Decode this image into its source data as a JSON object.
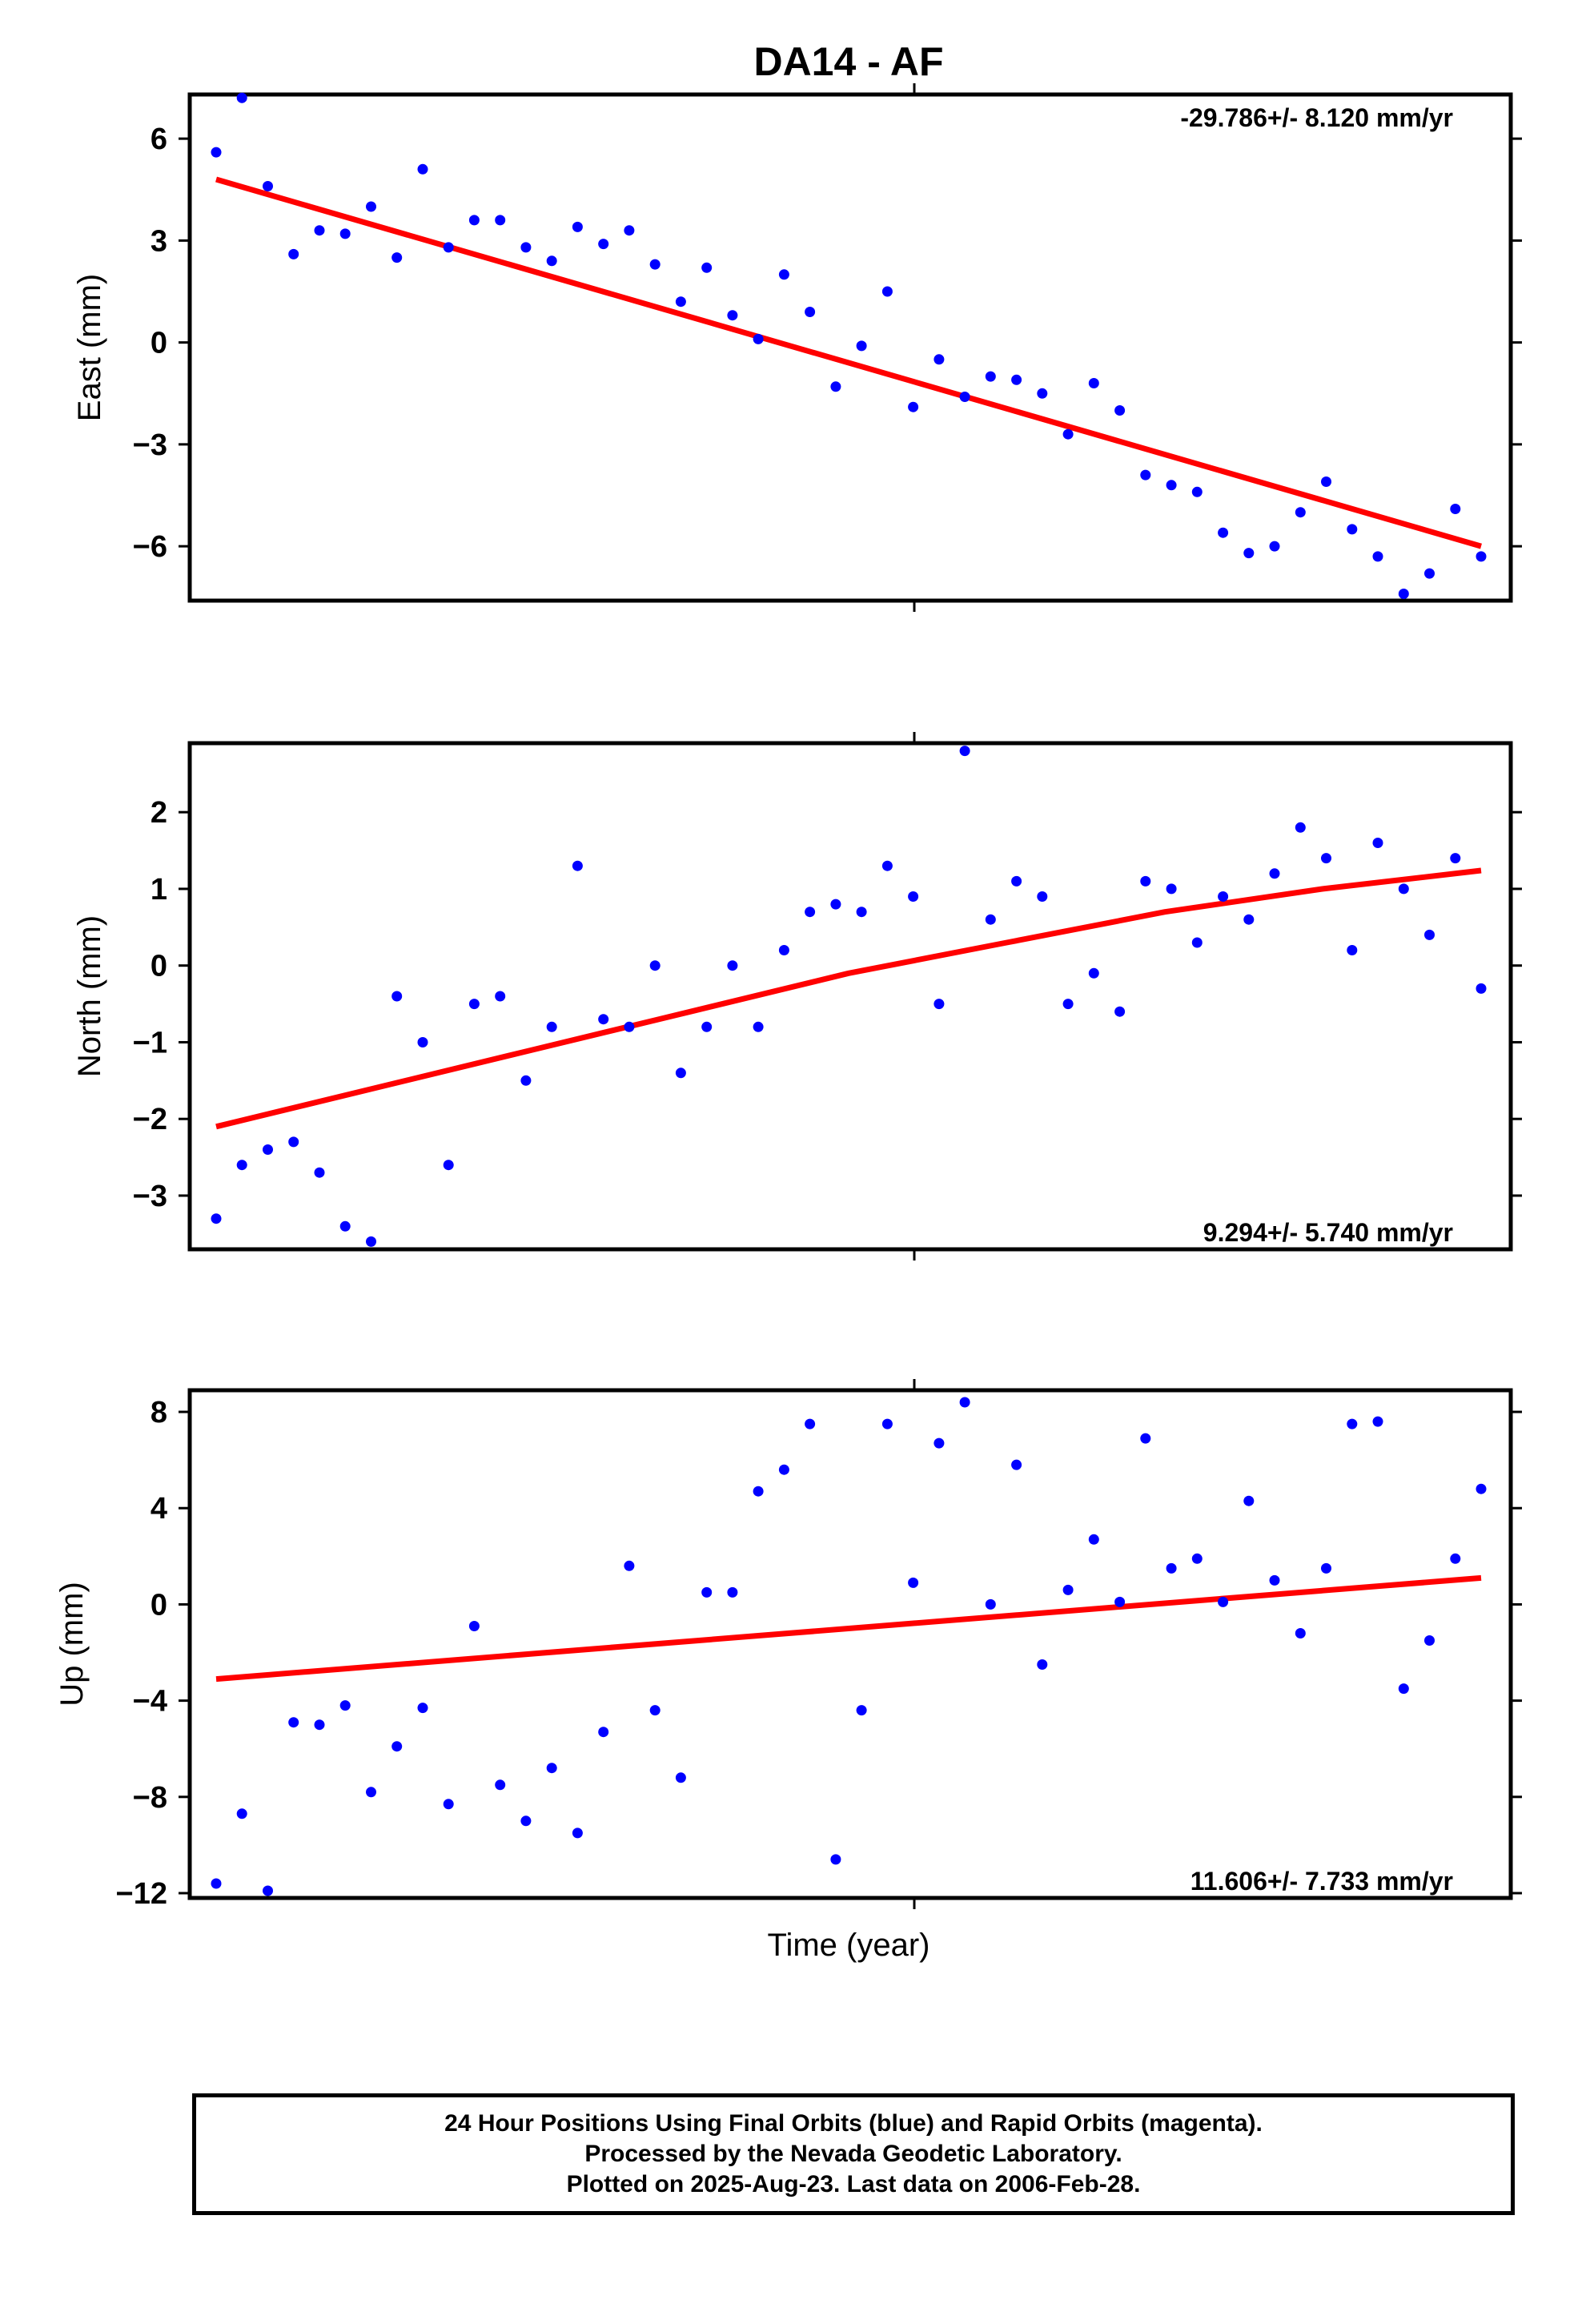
{
  "title": "DA14 - AF",
  "chart_data": [
    {
      "type": "scatter",
      "ylabel": "East (mm)",
      "xlabel": "",
      "ylim": [
        -7.6,
        7.3
      ],
      "yticks": [
        6,
        3,
        0,
        -3,
        -6
      ],
      "ytick_labels": [
        "6",
        "3",
        "0",
        "−3",
        "−6"
      ],
      "rate_label": "-29.786+/- 8.120 mm/yr",
      "rate_position": "top-right",
      "series": [
        {
          "color": "#0000ff",
          "values": [
            5.6,
            7.2,
            4.6,
            2.6,
            3.3,
            3.2,
            4.0,
            2.5,
            5.1,
            2.8,
            3.6,
            3.6,
            2.8,
            2.4,
            3.4,
            2.9,
            3.3,
            2.3,
            1.2,
            2.2,
            0.8,
            0.1,
            2.0,
            0.9,
            -1.3,
            -0.1,
            1.5,
            -1.9,
            -0.5,
            -1.6,
            -1.0,
            -1.1,
            -1.5,
            -2.7,
            -1.2,
            -2.0,
            -3.9,
            -4.2,
            -4.4,
            -5.6,
            -6.2,
            -6.0,
            -5.0,
            -4.1,
            -5.5,
            -6.3,
            -7.4,
            -6.8,
            -4.9,
            -6.3
          ]
        },
        {
          "color": "#ff0000",
          "values": [
            4.8,
            -6.0
          ]
        }
      ]
    },
    {
      "type": "scatter",
      "ylabel": "North (mm)",
      "xlabel": "",
      "ylim": [
        -3.7,
        2.9
      ],
      "yticks": [
        2,
        1,
        0,
        -1,
        -2,
        -3
      ],
      "ytick_labels": [
        "2",
        "1",
        "0",
        "−1",
        "−2",
        "−3"
      ],
      "rate_label": "9.294+/- 5.740 mm/yr",
      "rate_position": "bottom-right",
      "series": [
        {
          "color": "#0000ff",
          "values": [
            -3.3,
            -2.6,
            -2.4,
            -2.3,
            -2.7,
            -3.4,
            -3.6,
            -0.4,
            -1.0,
            -2.6,
            -0.5,
            -0.4,
            -1.5,
            -0.8,
            1.3,
            -0.7,
            -0.8,
            0.0,
            -1.4,
            -0.8,
            -0.0,
            -0.8,
            0.2,
            0.7,
            0.8,
            0.7,
            1.3,
            0.9,
            -0.5,
            2.8,
            0.6,
            1.1,
            0.9,
            -0.5,
            -0.1,
            -0.6,
            1.1,
            1.0,
            0.3,
            0.9,
            0.6,
            1.2,
            1.8,
            1.4,
            0.2,
            1.6,
            1.0,
            0.4,
            1.4,
            -0.3
          ]
        },
        {
          "color": "#ff0000",
          "values": [
            -2.1,
            -1.6,
            -1.1,
            -0.6,
            -0.1,
            0.3,
            0.7,
            1.0,
            1.24
          ]
        }
      ]
    },
    {
      "type": "scatter",
      "ylabel": "Up (mm)",
      "xlabel": "Time (year)",
      "ylim": [
        -12.2,
        8.9
      ],
      "yticks": [
        8,
        4,
        0,
        -4,
        -8,
        -12
      ],
      "ytick_labels": [
        "8",
        "4",
        "0",
        "−4",
        "−8",
        "−12"
      ],
      "rate_label": "11.606+/- 7.733 mm/yr",
      "rate_position": "bottom-right",
      "series": [
        {
          "color": "#0000ff",
          "values": [
            -11.6,
            -8.7,
            -11.9,
            -4.9,
            -5.0,
            -4.2,
            -7.8,
            -5.9,
            -4.3,
            -8.3,
            -0.9,
            -7.5,
            -9.0,
            -6.8,
            -9.5,
            -5.3,
            1.6,
            -4.4,
            -7.2,
            0.5,
            0.5,
            4.7,
            5.6,
            7.5,
            -10.6,
            -4.4,
            7.5,
            0.9,
            6.7,
            8.4,
            0.0,
            5.8,
            -2.5,
            0.6,
            2.7,
            0.1,
            6.9,
            1.5,
            1.9,
            0.1,
            4.3,
            1.0,
            -1.2,
            1.5,
            7.5,
            7.6,
            -3.5,
            -1.5,
            1.9,
            4.8
          ]
        },
        {
          "color": "#ff0000",
          "values": [
            -3.1,
            1.1
          ]
        }
      ]
    }
  ],
  "caption": {
    "line1": "24 Hour Positions Using Final Orbits (blue) and Rapid Orbits (magenta).",
    "line2": "Processed by the Nevada Geodetic Laboratory.",
    "line3": "Plotted on 2025-Aug-23. Last data on 2006-Feb-28."
  }
}
